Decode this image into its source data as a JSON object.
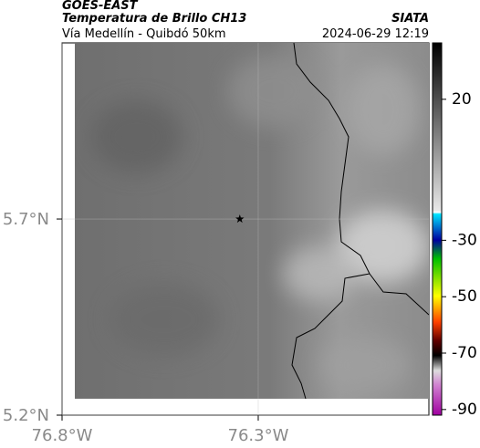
{
  "header": {
    "title": "GOES-EAST",
    "subtitle": "Temperatura de Brillo CH13",
    "source": "SIATA",
    "region": "Vía Medellín - Quibdó 50km",
    "datetime": "2024-06-29 12:19"
  },
  "map": {
    "xlim": [
      -76.8,
      -75.865
    ],
    "ylim": [
      5.2,
      6.149
    ],
    "xticks": [
      {
        "value": -76.8,
        "label": "76.8°W"
      },
      {
        "value": -76.3,
        "label": "76.3°W"
      }
    ],
    "yticks": [
      {
        "value": 5.2,
        "label": "5.2°N"
      },
      {
        "value": 5.7,
        "label": "5.7°N"
      }
    ],
    "marker": {
      "lon": -76.347,
      "lat": 5.7
    }
  },
  "colorbar": {
    "lim": [
      -92,
      40
    ],
    "ticks": [
      20,
      -30,
      -50,
      -70,
      -90
    ]
  }
}
